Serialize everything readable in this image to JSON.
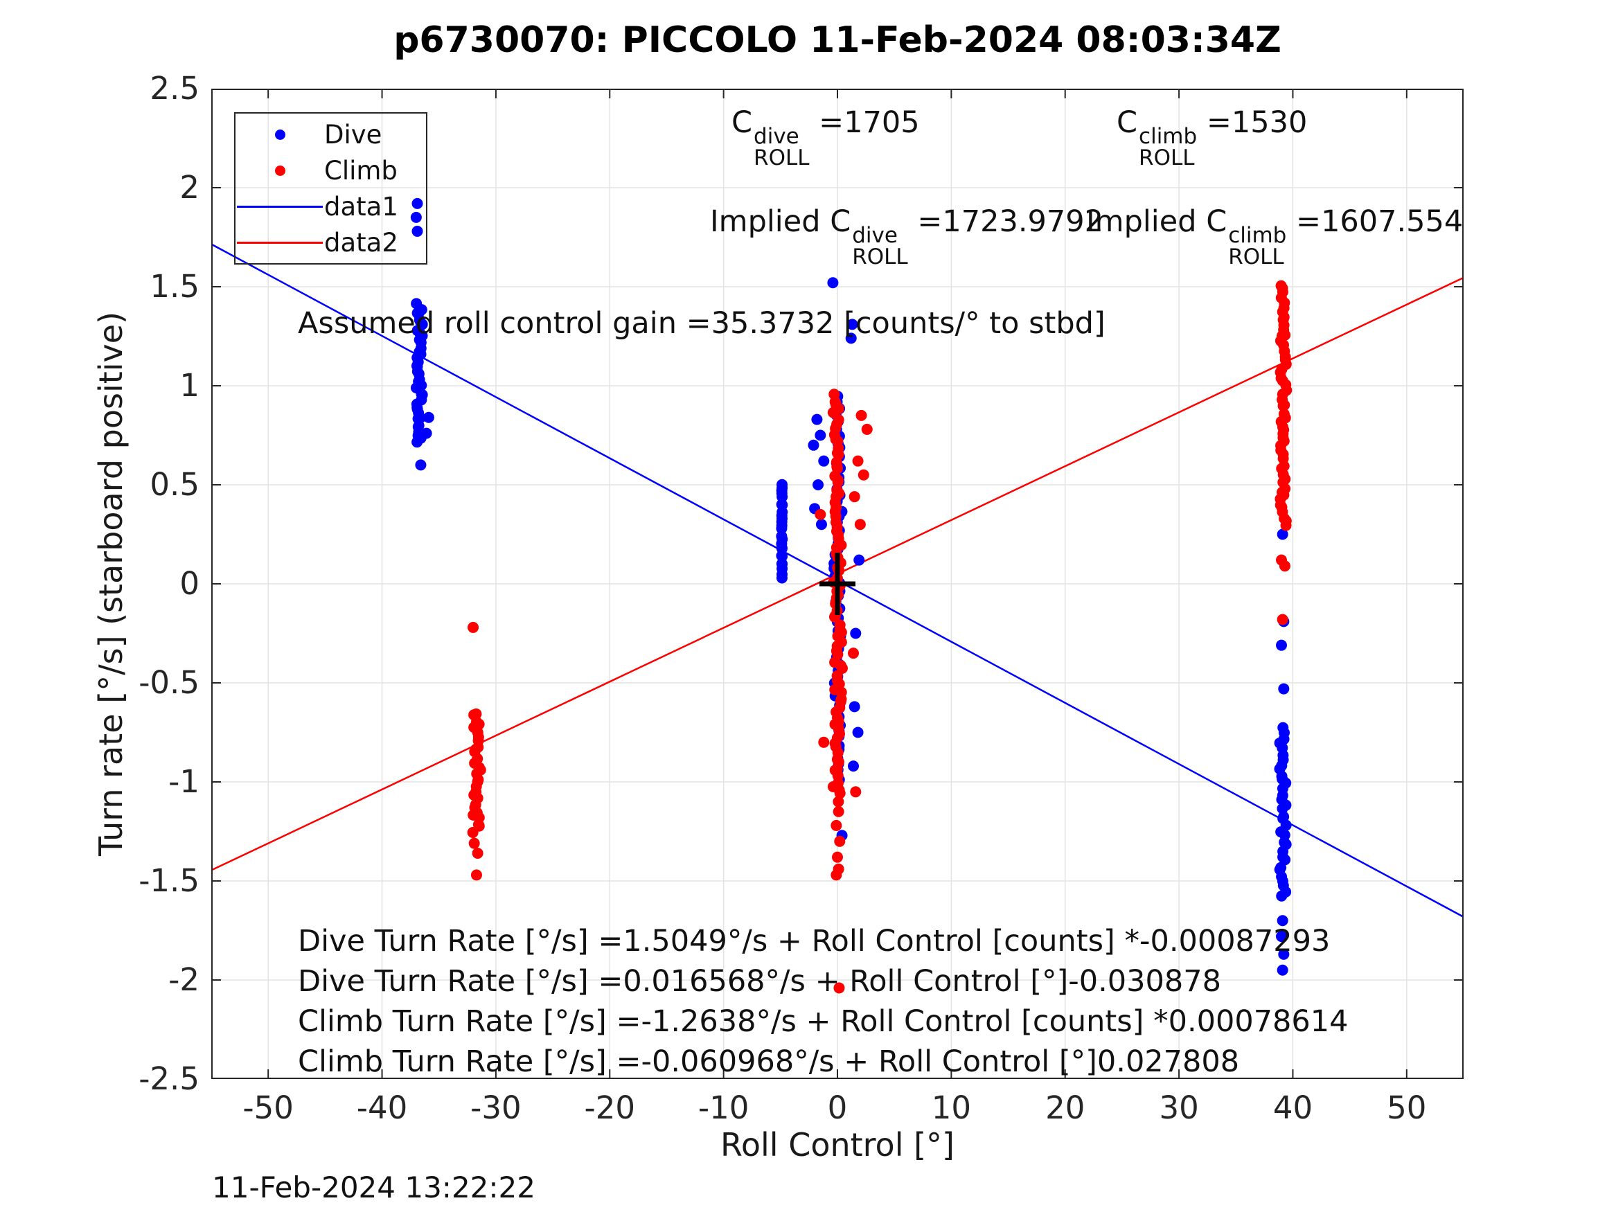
{
  "title": "p6730070: PICCOLO 11-Feb-2024 08:03:34Z",
  "footer_timestamp": "11-Feb-2024 13:22:22",
  "annotations": {
    "c_dive": {
      "prefix": "",
      "base": "C",
      "sup": "dive",
      "sub": "ROLL",
      "rest": " =1705"
    },
    "c_climb": {
      "prefix": "",
      "base": "C",
      "sup": "climb",
      "sub": "ROLL",
      "rest": " =1530"
    },
    "implied_dive": {
      "prefix": "Implied ",
      "base": "C",
      "sup": "dive",
      "sub": "ROLL",
      "rest": " =1723.9792"
    },
    "implied_climb": {
      "prefix": "Implied ",
      "base": "C",
      "sup": "climb",
      "sub": "ROLL",
      "rest": " =1607.554"
    },
    "gain": "Assumed roll control gain =35.3732 [counts/° to stbd]",
    "eq1": "Dive Turn Rate [°/s] =1.5049°/s + Roll Control [counts] *-0.00087293",
    "eq2": "Dive Turn Rate [°/s] =0.016568°/s + Roll Control [°]-0.030878",
    "eq3": "Climb Turn Rate [°/s] =-1.2638°/s + Roll Control [counts] *0.00078614",
    "eq4": "Climb Turn Rate [°/s] =-0.060968°/s + Roll Control [°]0.027808"
  },
  "legend": {
    "entries": [
      {
        "marker": "dot",
        "color": "#0000ff",
        "label": "Dive"
      },
      {
        "marker": "dot",
        "color": "#ff0000",
        "label": "Climb"
      },
      {
        "marker": "line",
        "color": "#0000ff",
        "label": "data1"
      },
      {
        "marker": "line",
        "color": "#ff0000",
        "label": "data2"
      }
    ]
  },
  "chart_data": {
    "type": "scatter",
    "title": "p6730070: PICCOLO 11-Feb-2024 08:03:34Z",
    "xlabel": "Roll Control [°]",
    "ylabel": "Turn rate [°/s] (starboard positive)",
    "xlim": [
      -55,
      55
    ],
    "ylim": [
      -2.5,
      2.5
    ],
    "x_ticks": [
      "-50",
      "-40",
      "-30",
      "-20",
      "-10",
      "0",
      "10",
      "20",
      "30",
      "40",
      "50"
    ],
    "y_ticks": [
      "-2.5",
      "-2",
      "-1.5",
      "-1",
      "-0.5",
      "0",
      "0.5",
      "1",
      "1.5",
      "2",
      "2.5"
    ],
    "grid": true,
    "grid_color": "#e3e3e3",
    "axis_color": "#262626",
    "legend_position": "top-left",
    "origin_marker": {
      "x": 0,
      "y": 0,
      "color": "#000000"
    },
    "lines": [
      {
        "name": "data1",
        "color": "#0000ff",
        "points": [
          [
            -55,
            1.7149
          ],
          [
            55,
            -1.6817
          ]
        ]
      },
      {
        "name": "data2",
        "color": "#ff0000",
        "points": [
          [
            -55,
            -1.446
          ],
          [
            55,
            1.546
          ]
        ]
      }
    ],
    "series": [
      {
        "name": "Dive",
        "color": "#0000ff",
        "marker": "dot",
        "strips": [
          {
            "x": -36.7,
            "xj": 0.45,
            "y1": 1.41,
            "y2": 0.72,
            "n": 40
          },
          {
            "x": -4.88,
            "xj": 0.05,
            "y1": 0.51,
            "y2": 0.03,
            "n": 25
          },
          {
            "x": 0.05,
            "xj": 0.4,
            "y1": 0.95,
            "y2": -0.98,
            "n": 58
          },
          {
            "x": 39.15,
            "xj": 0.35,
            "y1": -0.73,
            "y2": -1.58,
            "n": 34
          }
        ],
        "points": [
          [
            -36.9,
            1.92
          ],
          [
            -37.0,
            1.85
          ],
          [
            -36.9,
            1.78
          ],
          [
            -36.6,
            0.6
          ],
          [
            -35.9,
            0.84
          ],
          [
            -36.1,
            0.76
          ],
          [
            -0.4,
            1.52
          ],
          [
            1.3,
            1.31
          ],
          [
            1.2,
            1.24
          ],
          [
            -1.8,
            0.83
          ],
          [
            -1.5,
            0.75
          ],
          [
            -2.1,
            0.7
          ],
          [
            -1.2,
            0.62
          ],
          [
            -1.7,
            0.5
          ],
          [
            -2.0,
            0.38
          ],
          [
            -1.4,
            0.3
          ],
          [
            1.9,
            0.12
          ],
          [
            1.6,
            -0.25
          ],
          [
            1.5,
            -0.62
          ],
          [
            1.8,
            -0.75
          ],
          [
            1.4,
            -0.92
          ],
          [
            0.4,
            -1.27
          ],
          [
            39.1,
            0.25
          ],
          [
            39.2,
            -0.19
          ],
          [
            39.0,
            -0.31
          ],
          [
            39.2,
            -0.53
          ],
          [
            39.1,
            -1.7
          ],
          [
            39.0,
            -1.78
          ],
          [
            39.2,
            -1.87
          ],
          [
            39.1,
            -1.95
          ]
        ]
      },
      {
        "name": "Climb",
        "color": "#ff0000",
        "marker": "dot",
        "strips": [
          {
            "x": -31.7,
            "xj": 0.4,
            "y1": -0.65,
            "y2": -1.25,
            "n": 30
          },
          {
            "x": 0.0,
            "xj": 0.45,
            "y1": 0.95,
            "y2": -1.09,
            "n": 88
          },
          {
            "x": 39.2,
            "xj": 0.35,
            "y1": 1.51,
            "y2": 0.29,
            "n": 56
          }
        ],
        "points": [
          [
            -32.0,
            -0.22
          ],
          [
            -31.9,
            -1.31
          ],
          [
            -31.6,
            -1.36
          ],
          [
            -31.7,
            -1.47
          ],
          [
            0.1,
            -1.15
          ],
          [
            -0.1,
            -1.22
          ],
          [
            0.2,
            -1.3
          ],
          [
            0.0,
            -1.38
          ],
          [
            0.1,
            -1.44
          ],
          [
            -0.1,
            -1.47
          ],
          [
            2.1,
            0.85
          ],
          [
            2.6,
            0.78
          ],
          [
            1.8,
            0.62
          ],
          [
            2.3,
            0.55
          ],
          [
            1.5,
            0.44
          ],
          [
            2.0,
            0.3
          ],
          [
            1.4,
            -0.35
          ],
          [
            1.6,
            -1.05
          ],
          [
            -1.2,
            -0.8
          ],
          [
            -1.5,
            0.35
          ],
          [
            0.15,
            -2.04
          ],
          [
            39.0,
            0.12
          ],
          [
            39.3,
            0.09
          ],
          [
            39.1,
            -0.18
          ]
        ]
      }
    ]
  }
}
